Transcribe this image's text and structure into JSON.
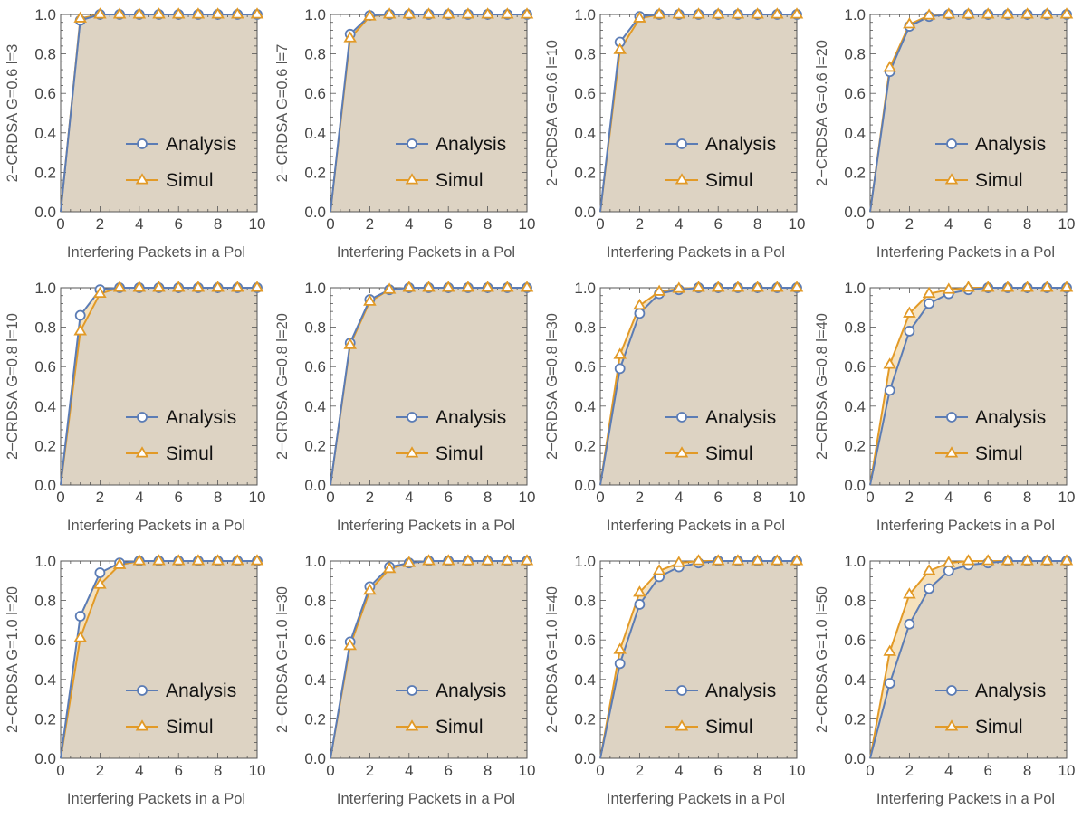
{
  "chart_data": [
    {
      "type": "line",
      "ylabel": "2−CRDSA G=0.6 l=3",
      "xlabel": "Interfering Packets in a Pol",
      "xlim": [
        0,
        10
      ],
      "ylim": [
        0,
        1
      ],
      "x": [
        0,
        1,
        2,
        3,
        4,
        5,
        6,
        7,
        8,
        9,
        10
      ],
      "series": [
        {
          "name": "Analysis",
          "values": [
            0,
            0.97,
            1,
            1,
            1,
            1,
            1,
            1,
            1,
            1,
            1
          ]
        },
        {
          "name": "Simul",
          "values": [
            0,
            0.98,
            1,
            1,
            1,
            1,
            1,
            1,
            1,
            1,
            1
          ]
        }
      ]
    },
    {
      "type": "line",
      "ylabel": "2−CRDSA G=0.6 l=7",
      "xlabel": "Interfering Packets in a Pol",
      "xlim": [
        0,
        10
      ],
      "ylim": [
        0,
        1
      ],
      "x": [
        0,
        1,
        2,
        3,
        4,
        5,
        6,
        7,
        8,
        9,
        10
      ],
      "series": [
        {
          "name": "Analysis",
          "values": [
            0,
            0.9,
            0.995,
            1,
            1,
            1,
            1,
            1,
            1,
            1,
            1
          ]
        },
        {
          "name": "Simul",
          "values": [
            0,
            0.88,
            0.99,
            1,
            1,
            1,
            1,
            1,
            1,
            1,
            1
          ]
        }
      ]
    },
    {
      "type": "line",
      "ylabel": "2−CRDSA G=0.6 l=10",
      "xlabel": "Interfering Packets in a Pol",
      "xlim": [
        0,
        10
      ],
      "ylim": [
        0,
        1
      ],
      "x": [
        0,
        1,
        2,
        3,
        4,
        5,
        6,
        7,
        8,
        9,
        10
      ],
      "series": [
        {
          "name": "Analysis",
          "values": [
            0,
            0.86,
            0.99,
            1,
            1,
            1,
            1,
            1,
            1,
            1,
            1
          ]
        },
        {
          "name": "Simul",
          "values": [
            0,
            0.82,
            0.98,
            1,
            1,
            1,
            1,
            1,
            1,
            1,
            1
          ]
        }
      ]
    },
    {
      "type": "line",
      "ylabel": "2−CRDSA G=0.6 l=20",
      "xlabel": "Interfering Packets in a Pol",
      "xlim": [
        0,
        10
      ],
      "ylim": [
        0,
        1
      ],
      "x": [
        0,
        1,
        2,
        3,
        4,
        5,
        6,
        7,
        8,
        9,
        10
      ],
      "series": [
        {
          "name": "Analysis",
          "values": [
            0,
            0.71,
            0.94,
            0.99,
            1,
            1,
            1,
            1,
            1,
            1,
            1
          ]
        },
        {
          "name": "Simul",
          "values": [
            0,
            0.73,
            0.95,
            0.995,
            1,
            1,
            1,
            1,
            1,
            1,
            1
          ]
        }
      ]
    },
    {
      "type": "line",
      "ylabel": "2−CRDSA G=0.8 l=10",
      "xlabel": "Interfering Packets in a Pol",
      "xlim": [
        0,
        10
      ],
      "ylim": [
        0,
        1
      ],
      "x": [
        0,
        1,
        2,
        3,
        4,
        5,
        6,
        7,
        8,
        9,
        10
      ],
      "series": [
        {
          "name": "Analysis",
          "values": [
            0,
            0.86,
            0.99,
            1,
            1,
            1,
            1,
            1,
            1,
            1,
            1
          ]
        },
        {
          "name": "Simul",
          "values": [
            0,
            0.78,
            0.97,
            1,
            1,
            1,
            1,
            1,
            1,
            1,
            1
          ]
        }
      ]
    },
    {
      "type": "line",
      "ylabel": "2−CRDSA G=0.8 l=20",
      "xlabel": "Interfering Packets in a Pol",
      "xlim": [
        0,
        10
      ],
      "ylim": [
        0,
        1
      ],
      "x": [
        0,
        1,
        2,
        3,
        4,
        5,
        6,
        7,
        8,
        9,
        10
      ],
      "series": [
        {
          "name": "Analysis",
          "values": [
            0,
            0.72,
            0.94,
            0.99,
            1,
            1,
            1,
            1,
            1,
            1,
            1
          ]
        },
        {
          "name": "Simul",
          "values": [
            0,
            0.71,
            0.93,
            0.99,
            1,
            1,
            1,
            1,
            1,
            1,
            1
          ]
        }
      ]
    },
    {
      "type": "line",
      "ylabel": "2−CRDSA G=0.8 l=30",
      "xlabel": "Interfering Packets in a Pol",
      "xlim": [
        0,
        10
      ],
      "ylim": [
        0,
        1
      ],
      "x": [
        0,
        1,
        2,
        3,
        4,
        5,
        6,
        7,
        8,
        9,
        10
      ],
      "series": [
        {
          "name": "Analysis",
          "values": [
            0,
            0.59,
            0.87,
            0.97,
            0.99,
            1,
            1,
            1,
            1,
            1,
            1
          ]
        },
        {
          "name": "Simul",
          "values": [
            0,
            0.66,
            0.91,
            0.98,
            0.995,
            1,
            1,
            1,
            1,
            1,
            1
          ]
        }
      ]
    },
    {
      "type": "line",
      "ylabel": "2−CRDSA G=0.8 l=40",
      "xlabel": "Interfering Packets in a Pol",
      "xlim": [
        0,
        10
      ],
      "ylim": [
        0,
        1
      ],
      "x": [
        0,
        1,
        2,
        3,
        4,
        5,
        6,
        7,
        8,
        9,
        10
      ],
      "series": [
        {
          "name": "Analysis",
          "values": [
            0,
            0.48,
            0.78,
            0.92,
            0.97,
            0.99,
            1,
            1,
            1,
            1,
            1
          ]
        },
        {
          "name": "Simul",
          "values": [
            0,
            0.61,
            0.87,
            0.97,
            0.99,
            1,
            1,
            1,
            1,
            1,
            1
          ]
        }
      ]
    },
    {
      "type": "line",
      "ylabel": "2−CRDSA G=1.0 l=20",
      "xlabel": "Interfering Packets in a Pol",
      "xlim": [
        0,
        10
      ],
      "ylim": [
        0,
        1
      ],
      "x": [
        0,
        1,
        2,
        3,
        4,
        5,
        6,
        7,
        8,
        9,
        10
      ],
      "series": [
        {
          "name": "Analysis",
          "values": [
            0,
            0.72,
            0.94,
            0.99,
            1,
            1,
            1,
            1,
            1,
            1,
            1
          ]
        },
        {
          "name": "Simul",
          "values": [
            0,
            0.61,
            0.88,
            0.98,
            1,
            1,
            1,
            1,
            1,
            1,
            1
          ]
        }
      ]
    },
    {
      "type": "line",
      "ylabel": "2−CRDSA G=1.0 l=30",
      "xlabel": "Interfering Packets in a Pol",
      "xlim": [
        0,
        10
      ],
      "ylim": [
        0,
        1
      ],
      "x": [
        0,
        1,
        2,
        3,
        4,
        5,
        6,
        7,
        8,
        9,
        10
      ],
      "series": [
        {
          "name": "Analysis",
          "values": [
            0,
            0.59,
            0.87,
            0.97,
            0.99,
            1,
            1,
            1,
            1,
            1,
            1
          ]
        },
        {
          "name": "Simul",
          "values": [
            0,
            0.57,
            0.85,
            0.96,
            0.99,
            1,
            1,
            1,
            1,
            1,
            1
          ]
        }
      ]
    },
    {
      "type": "line",
      "ylabel": "2−CRDSA G=1.0 l=40",
      "xlabel": "Interfering Packets in a Pol",
      "xlim": [
        0,
        10
      ],
      "ylim": [
        0,
        1
      ],
      "x": [
        0,
        1,
        2,
        3,
        4,
        5,
        6,
        7,
        8,
        9,
        10
      ],
      "series": [
        {
          "name": "Analysis",
          "values": [
            0,
            0.48,
            0.78,
            0.92,
            0.97,
            0.99,
            1,
            1,
            1,
            1,
            1
          ]
        },
        {
          "name": "Simul",
          "values": [
            0,
            0.55,
            0.84,
            0.95,
            0.99,
            1,
            1,
            1,
            1,
            1,
            1
          ]
        }
      ]
    },
    {
      "type": "line",
      "ylabel": "2−CRDSA G=1.0 l=50",
      "xlabel": "Interfering Packets in a Pol",
      "xlim": [
        0,
        10
      ],
      "ylim": [
        0,
        1
      ],
      "x": [
        0,
        1,
        2,
        3,
        4,
        5,
        6,
        7,
        8,
        9,
        10
      ],
      "series": [
        {
          "name": "Analysis",
          "values": [
            0,
            0.38,
            0.68,
            0.86,
            0.95,
            0.98,
            0.99,
            1,
            1,
            1,
            1
          ]
        },
        {
          "name": "Simul",
          "values": [
            0,
            0.54,
            0.83,
            0.95,
            0.99,
            1,
            1,
            1,
            1,
            1,
            1
          ]
        }
      ]
    }
  ],
  "style": {
    "analysis_color": "#5B7CB5",
    "simul_color": "#E29A27",
    "fill_color": "#DDD3C3",
    "gap_fill_color": "#F5E1BD",
    "axis_color": "#555555"
  },
  "legend": {
    "position": "lower-right"
  },
  "xticks": [
    0,
    2,
    4,
    6,
    8,
    10
  ],
  "yticks": [
    0,
    0.2,
    0.4,
    0.6,
    0.8,
    1
  ]
}
